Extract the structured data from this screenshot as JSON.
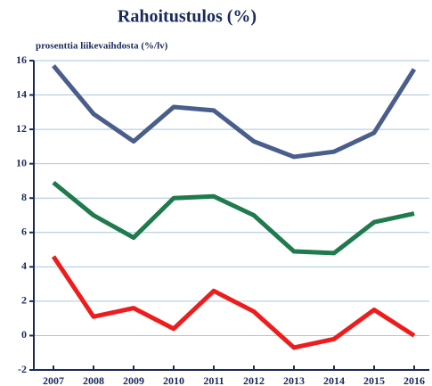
{
  "chart_data": {
    "type": "line",
    "title": "Rahoitustulos (%)",
    "subtitle": "prosenttia liikevaihdosta (%/lv)",
    "categories": [
      "2007",
      "2008",
      "2009",
      "2010",
      "2011",
      "2012",
      "2013",
      "2014",
      "2015",
      "2016"
    ],
    "series": [
      {
        "color": "#4a5e8c",
        "values": [
          15.7,
          12.9,
          11.3,
          13.3,
          13.1,
          11.3,
          10.4,
          10.7,
          11.8,
          15.5
        ]
      },
      {
        "color": "#1f7a4d",
        "values": [
          8.9,
          7.0,
          5.7,
          8.0,
          8.1,
          7.0,
          4.9,
          4.8,
          6.6,
          7.1
        ]
      },
      {
        "color": "#ee1c1c",
        "values": [
          4.6,
          1.1,
          1.6,
          0.4,
          2.6,
          1.4,
          -0.7,
          -0.2,
          1.5,
          0.0
        ]
      }
    ],
    "ylim": [
      -2,
      16
    ],
    "yticks": [
      -2,
      0,
      2,
      4,
      6,
      8,
      10,
      12,
      14,
      16
    ],
    "grid": true
  }
}
